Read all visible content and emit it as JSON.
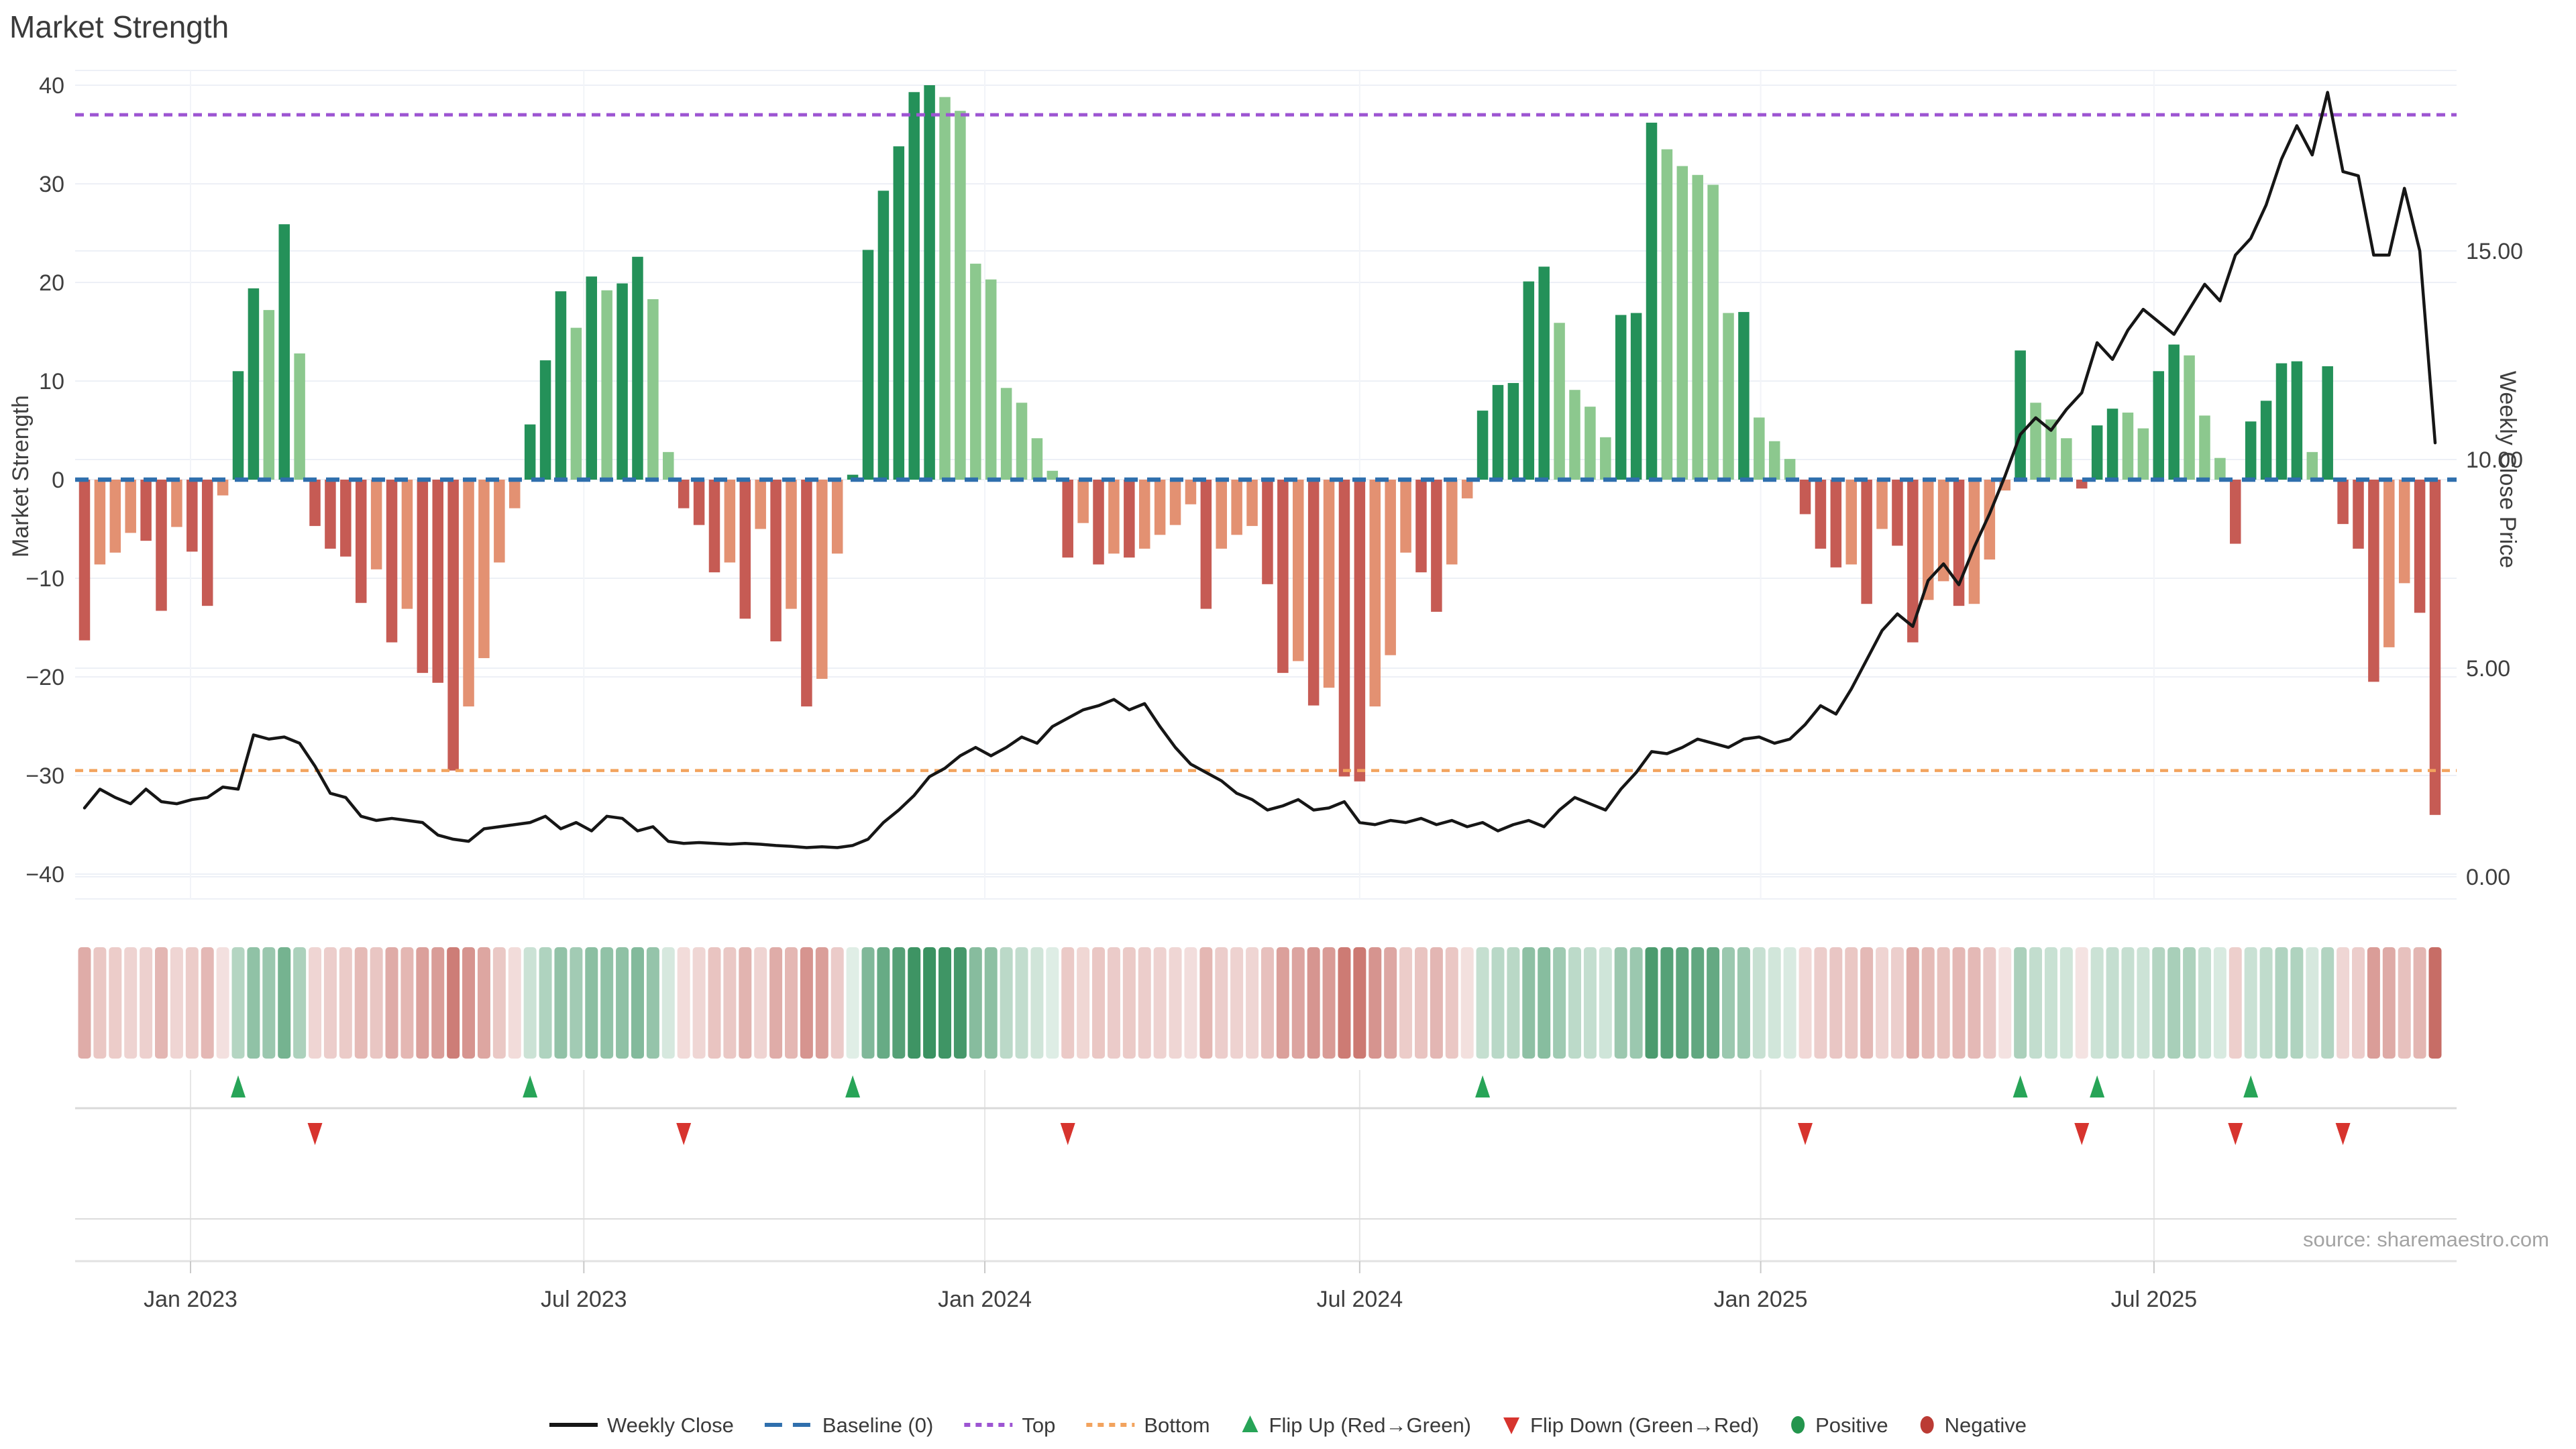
{
  "ui": {
    "title": "Market Strength",
    "y_left_title": "Market Strength",
    "y_right_title": "Weekly Close Price",
    "source": "source: sharemaestro.com"
  },
  "colors": {
    "bar_pos_dark": "#249159",
    "bar_pos_light": "#8cc88e",
    "bar_neg_dark": "#c65b54",
    "bar_neg_light": "#e39172",
    "line": "#161616",
    "baseline": "#2f6fad",
    "top": "#9d55d2",
    "bottom": "#f2a35e",
    "flip_up": "#27a457",
    "flip_down": "#d7342e",
    "positive_dot": "#23954d",
    "negative_dot": "#bb3b34",
    "heat_pos": "#2e8b57",
    "heat_neg": "#bb4d44",
    "grid": "#edf0f6",
    "grid_vertical": "#f2f4f8",
    "band_grid_vertical": "#e6e6e6",
    "band_line": "#d9d9d9",
    "axis_line": "#e2e2e2",
    "tick_mark": "#c9c9c9",
    "text": "#3f3f3f",
    "title_text": "#3a3a3a",
    "source_text": "#a3a3a3"
  },
  "chart_data": {
    "type": "bar+line",
    "title": "Market Strength",
    "x_unit": "week",
    "xlabel": "",
    "ylabel_left": "Market Strength",
    "ylabel_right": "Weekly Close Price",
    "ylim_left": [
      -42.5,
      41.5
    ],
    "ylim_right": [
      0,
      19.3
    ],
    "grid": true,
    "legend_position": "bottom-center",
    "x_ticks": [
      {
        "week": 6.9,
        "label": "Jan 2023"
      },
      {
        "week": 32.5,
        "label": "Jul 2023"
      },
      {
        "week": 58.6,
        "label": "Jan 2024"
      },
      {
        "week": 83.0,
        "label": "Jul 2024"
      },
      {
        "week": 109.1,
        "label": "Jan 2025"
      },
      {
        "week": 134.7,
        "label": "Jul 2025"
      }
    ],
    "left_ticks": [
      {
        "v": 40,
        "label": "40"
      },
      {
        "v": 30,
        "label": "30"
      },
      {
        "v": 20,
        "label": "20"
      },
      {
        "v": 10,
        "label": "10"
      },
      {
        "v": 0,
        "label": "0"
      },
      {
        "v": -10,
        "label": "−10"
      },
      {
        "v": -20,
        "label": "−20"
      },
      {
        "v": -30,
        "label": "−30"
      },
      {
        "v": -40,
        "label": "−40"
      }
    ],
    "right_ticks": [
      {
        "v": 15,
        "label": "15.00"
      },
      {
        "v": 10,
        "label": "10.00"
      },
      {
        "v": 5,
        "label": "5.00"
      },
      {
        "v": 0,
        "label": "0.00"
      }
    ],
    "reference_lines": {
      "baseline": 0,
      "top": 37,
      "bottom": -29.5
    },
    "series": [
      {
        "name": "Market Strength",
        "type": "bar",
        "axis": "left",
        "values": [
          -16.3,
          -8.6,
          -7.4,
          -5.4,
          -6.2,
          -13.3,
          -4.8,
          -7.3,
          -12.8,
          -1.6,
          11,
          19.4,
          17.2,
          25.9,
          12.8,
          -4.7,
          -7,
          -7.8,
          -12.5,
          -9.1,
          -16.5,
          -13.1,
          -19.6,
          -20.6,
          -29.5,
          -23,
          -18.1,
          -8.4,
          -2.9,
          5.6,
          12.1,
          19.1,
          15.4,
          20.6,
          19.2,
          19.9,
          22.6,
          18.3,
          2.8,
          -2.9,
          -4.6,
          -9.4,
          -8.4,
          -14.1,
          -5,
          -16.4,
          -13.1,
          -23,
          -20.2,
          -7.5,
          0.5,
          23.3,
          29.3,
          33.8,
          39.3,
          40,
          38.8,
          37.4,
          21.9,
          20.3,
          9.3,
          7.8,
          4.2,
          0.9,
          -7.9,
          -4.4,
          -8.6,
          -7.5,
          -7.9,
          -7,
          -5.6,
          -4.6,
          -2.5,
          -13.1,
          -7,
          -5.6,
          -4.7,
          -10.6,
          -19.6,
          -18.4,
          -22.9,
          -21.1,
          -30.1,
          -30.6,
          -23,
          -17.8,
          -7.4,
          -9.4,
          -13.4,
          -8.6,
          -1.9,
          7,
          9.6,
          9.8,
          20.1,
          21.6,
          15.9,
          9.1,
          7.4,
          4.3,
          16.7,
          16.9,
          36.2,
          33.5,
          31.8,
          30.9,
          29.9,
          16.9,
          17,
          6.3,
          3.9,
          2.1,
          -3.5,
          -7,
          -8.9,
          -8.6,
          -12.6,
          -5,
          -6.7,
          -16.5,
          -12.2,
          -10.3,
          -12.8,
          -12.6,
          -8.1,
          -1.1,
          13.1,
          7.8,
          6.1,
          4.2,
          -0.9,
          5.5,
          7.2,
          6.8,
          5.2,
          11,
          13.7,
          12.6,
          6.5,
          2.2,
          -6.5,
          5.9,
          8,
          11.8,
          12,
          2.8,
          11.5,
          -4.5,
          -7,
          -20.5,
          -17,
          -10.5,
          -13.5,
          -34
        ]
      },
      {
        "name": "Weekly Close",
        "type": "line",
        "axis": "right",
        "values": [
          1.65,
          2.1,
          1.9,
          1.75,
          2.1,
          1.8,
          1.75,
          1.85,
          1.9,
          2.15,
          2.1,
          3.4,
          3.3,
          3.35,
          3.2,
          2.65,
          2.0,
          1.9,
          1.45,
          1.35,
          1.4,
          1.35,
          1.3,
          1.0,
          0.9,
          0.85,
          1.15,
          1.2,
          1.25,
          1.3,
          1.45,
          1.15,
          1.3,
          1.1,
          1.45,
          1.4,
          1.1,
          1.2,
          0.85,
          0.8,
          0.82,
          0.8,
          0.78,
          0.8,
          0.78,
          0.75,
          0.73,
          0.7,
          0.72,
          0.7,
          0.75,
          0.9,
          1.3,
          1.6,
          1.95,
          2.4,
          2.6,
          2.9,
          3.1,
          2.9,
          3.1,
          3.35,
          3.2,
          3.6,
          3.8,
          4.0,
          4.1,
          4.25,
          4.0,
          4.15,
          3.6,
          3.1,
          2.7,
          2.5,
          2.3,
          2.0,
          1.85,
          1.6,
          1.7,
          1.85,
          1.6,
          1.65,
          1.8,
          1.3,
          1.25,
          1.35,
          1.3,
          1.4,
          1.25,
          1.35,
          1.2,
          1.3,
          1.1,
          1.25,
          1.35,
          1.2,
          1.6,
          1.9,
          1.75,
          1.6,
          2.1,
          2.5,
          3.0,
          2.95,
          3.1,
          3.3,
          3.2,
          3.1,
          3.3,
          3.35,
          3.2,
          3.3,
          3.65,
          4.1,
          3.9,
          4.5,
          5.2,
          5.9,
          6.3,
          6.0,
          7.1,
          7.5,
          7.0,
          7.9,
          8.7,
          9.6,
          10.6,
          11.0,
          10.7,
          11.2,
          11.6,
          12.8,
          12.4,
          13.1,
          13.6,
          13.3,
          13.0,
          13.6,
          14.2,
          13.8,
          14.9,
          15.3,
          16.1,
          17.2,
          18.0,
          17.3,
          18.8,
          16.9,
          16.8,
          14.9,
          14.9,
          16.5,
          15.0,
          10.4
        ]
      }
    ],
    "heatmap_strip": "derived: color intensity proportional to |Market Strength| / 40, green positive, red negative",
    "flip_markers": "derived from bar sign changes: up = red to green, down = green to red"
  },
  "legend": {
    "items": [
      {
        "kind": "line",
        "label": "Weekly Close",
        "color_key": "line"
      },
      {
        "kind": "dash",
        "label": "Baseline (0)",
        "color_key": "baseline"
      },
      {
        "kind": "dots",
        "label": "Top",
        "color_key": "top"
      },
      {
        "kind": "dots",
        "label": "Bottom",
        "color_key": "bottom"
      },
      {
        "kind": "tri-up",
        "label": "Flip Up (Red→Green)",
        "color_key": "flip_up"
      },
      {
        "kind": "tri-down",
        "label": "Flip Down (Green→Red)",
        "color_key": "flip_down"
      },
      {
        "kind": "circle",
        "label": "Positive",
        "color_key": "positive_dot"
      },
      {
        "kind": "circle",
        "label": "Negative",
        "color_key": "negative_dot"
      }
    ]
  }
}
